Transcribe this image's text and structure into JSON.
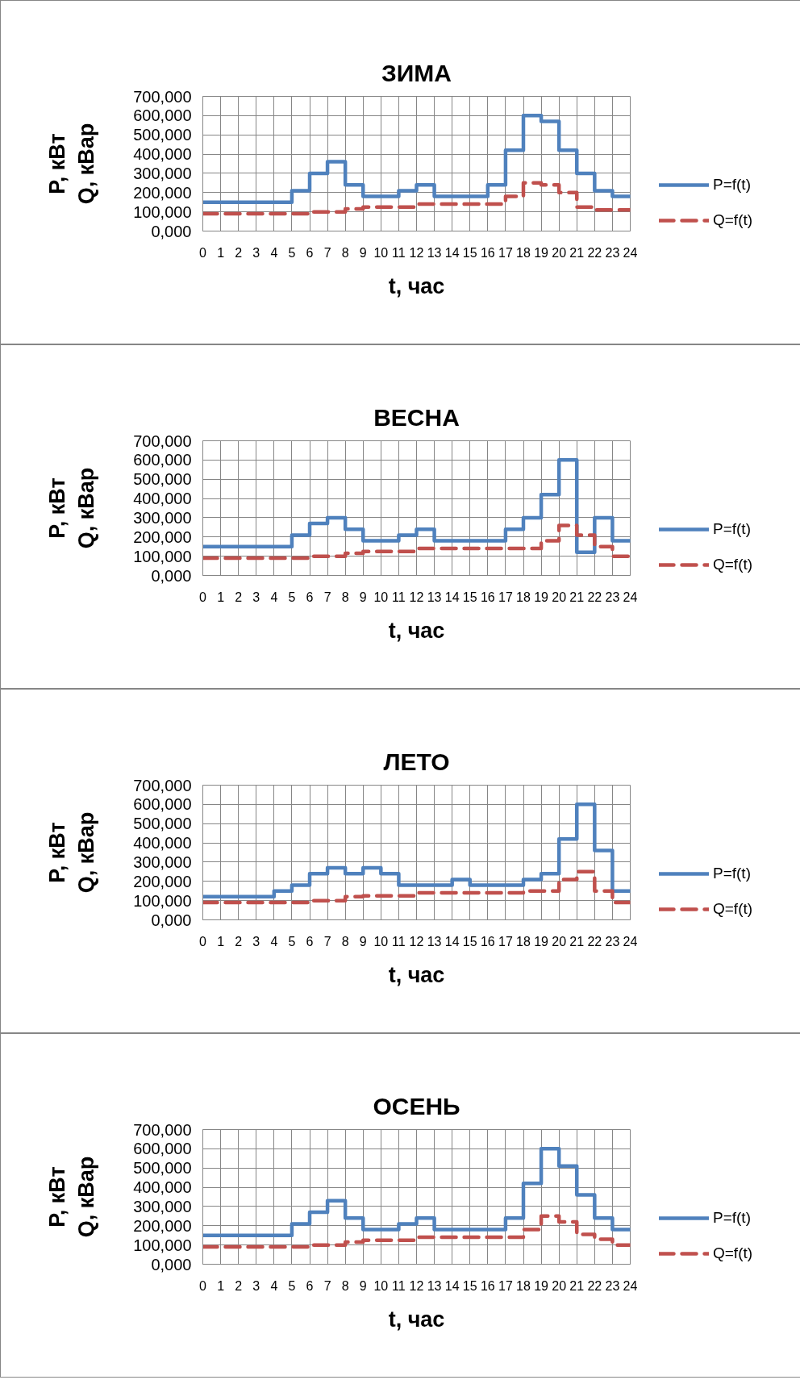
{
  "chart_data": [
    {
      "type": "step",
      "title": "ЗИМА",
      "xlabel": "t, час",
      "ylabel": "P, кВт\nQ, кВар",
      "x": [
        0,
        1,
        2,
        3,
        4,
        5,
        6,
        7,
        8,
        9,
        10,
        11,
        12,
        13,
        14,
        15,
        16,
        17,
        18,
        19,
        20,
        21,
        22,
        23,
        24
      ],
      "series": [
        {
          "name": "P=f(t)",
          "color": "#4f81bd",
          "line_style": "solid",
          "values": [
            150,
            150,
            150,
            150,
            150,
            210,
            300,
            360,
            240,
            180,
            180,
            210,
            240,
            180,
            180,
            180,
            240,
            420,
            600,
            570,
            420,
            300,
            210,
            180,
            180
          ]
        },
        {
          "name": "Q=f(t)",
          "color": "#c0504d",
          "line_style": "dashed",
          "values": [
            90,
            90,
            90,
            90,
            90,
            90,
            100,
            100,
            115,
            125,
            125,
            125,
            140,
            140,
            140,
            140,
            140,
            180,
            250,
            240,
            200,
            125,
            110,
            110,
            110
          ]
        }
      ],
      "xlim": [
        0,
        24
      ],
      "xticks": [
        0,
        1,
        2,
        3,
        4,
        5,
        6,
        7,
        8,
        9,
        10,
        11,
        12,
        13,
        14,
        15,
        16,
        17,
        18,
        19,
        20,
        21,
        22,
        23,
        24
      ],
      "ylim": [
        0,
        700
      ],
      "yticks": [
        {
          "value": 0,
          "label": "0,000"
        },
        {
          "value": 100,
          "label": "100,000"
        },
        {
          "value": 200,
          "label": "200,000"
        },
        {
          "value": 300,
          "label": "300,000"
        },
        {
          "value": 400,
          "label": "400,000"
        },
        {
          "value": 500,
          "label": "500,000"
        },
        {
          "value": 600,
          "label": "600,000"
        },
        {
          "value": 700,
          "label": "700,000"
        }
      ],
      "grid": true,
      "legend": "right"
    },
    {
      "type": "step",
      "title": "ВЕСНА",
      "xlabel": "t, час",
      "ylabel": "P, кВт\nQ, кВар",
      "x": [
        0,
        1,
        2,
        3,
        4,
        5,
        6,
        7,
        8,
        9,
        10,
        11,
        12,
        13,
        14,
        15,
        16,
        17,
        18,
        19,
        20,
        21,
        22,
        23,
        24
      ],
      "series": [
        {
          "name": "P=f(t)",
          "color": "#4f81bd",
          "line_style": "solid",
          "values": [
            150,
            150,
            150,
            150,
            150,
            210,
            270,
            300,
            240,
            180,
            180,
            210,
            240,
            180,
            180,
            180,
            180,
            240,
            300,
            420,
            600,
            120,
            300,
            180,
            180
          ]
        },
        {
          "name": "Q=f(t)",
          "color": "#c0504d",
          "line_style": "dashed",
          "values": [
            90,
            90,
            90,
            90,
            90,
            90,
            100,
            100,
            115,
            125,
            125,
            125,
            140,
            140,
            140,
            140,
            140,
            140,
            140,
            180,
            260,
            210,
            150,
            100,
            100
          ]
        }
      ],
      "xlim": [
        0,
        24
      ],
      "xticks": [
        0,
        1,
        2,
        3,
        4,
        5,
        6,
        7,
        8,
        9,
        10,
        11,
        12,
        13,
        14,
        15,
        16,
        17,
        18,
        19,
        20,
        21,
        22,
        23,
        24
      ],
      "ylim": [
        0,
        700
      ],
      "yticks": [
        {
          "value": 0,
          "label": "0,000"
        },
        {
          "value": 100,
          "label": "100,000"
        },
        {
          "value": 200,
          "label": "200,000"
        },
        {
          "value": 300,
          "label": "300,000"
        },
        {
          "value": 400,
          "label": "400,000"
        },
        {
          "value": 500,
          "label": "500,000"
        },
        {
          "value": 600,
          "label": "600,000"
        },
        {
          "value": 700,
          "label": "700,000"
        }
      ],
      "grid": true,
      "legend": "right"
    },
    {
      "type": "step",
      "title": "ЛЕТО",
      "xlabel": "t, час",
      "ylabel": "P, кВт\nQ, кВар",
      "x": [
        0,
        1,
        2,
        3,
        4,
        5,
        6,
        7,
        8,
        9,
        10,
        11,
        12,
        13,
        14,
        15,
        16,
        17,
        18,
        19,
        20,
        21,
        22,
        23,
        24
      ],
      "series": [
        {
          "name": "P=f(t)",
          "color": "#4f81bd",
          "line_style": "solid",
          "values": [
            120,
            120,
            120,
            120,
            150,
            180,
            240,
            270,
            240,
            270,
            240,
            180,
            180,
            180,
            210,
            180,
            180,
            180,
            210,
            240,
            420,
            600,
            360,
            150,
            150
          ]
        },
        {
          "name": "Q=f(t)",
          "color": "#c0504d",
          "line_style": "dashed",
          "values": [
            90,
            90,
            90,
            90,
            90,
            90,
            100,
            100,
            120,
            125,
            125,
            125,
            140,
            140,
            140,
            140,
            140,
            140,
            150,
            150,
            210,
            250,
            150,
            90,
            90
          ]
        }
      ],
      "xlim": [
        0,
        24
      ],
      "xticks": [
        0,
        1,
        2,
        3,
        4,
        5,
        6,
        7,
        8,
        9,
        10,
        11,
        12,
        13,
        14,
        15,
        16,
        17,
        18,
        19,
        20,
        21,
        22,
        23,
        24
      ],
      "ylim": [
        0,
        700
      ],
      "yticks": [
        {
          "value": 0,
          "label": "0,000"
        },
        {
          "value": 100,
          "label": "100,000"
        },
        {
          "value": 200,
          "label": "200,000"
        },
        {
          "value": 300,
          "label": "300,000"
        },
        {
          "value": 400,
          "label": "400,000"
        },
        {
          "value": 500,
          "label": "500,000"
        },
        {
          "value": 600,
          "label": "600,000"
        },
        {
          "value": 700,
          "label": "700,000"
        }
      ],
      "grid": true,
      "legend": "right"
    },
    {
      "type": "step",
      "title": "ОСЕНЬ",
      "xlabel": "t, час",
      "ylabel": "P, кВт\nQ, кВар",
      "x": [
        0,
        1,
        2,
        3,
        4,
        5,
        6,
        7,
        8,
        9,
        10,
        11,
        12,
        13,
        14,
        15,
        16,
        17,
        18,
        19,
        20,
        21,
        22,
        23,
        24
      ],
      "series": [
        {
          "name": "P=f(t)",
          "color": "#4f81bd",
          "line_style": "solid",
          "values": [
            150,
            150,
            150,
            150,
            150,
            210,
            270,
            330,
            240,
            180,
            180,
            210,
            240,
            180,
            180,
            180,
            180,
            240,
            420,
            600,
            510,
            360,
            240,
            180,
            180
          ]
        },
        {
          "name": "Q=f(t)",
          "color": "#c0504d",
          "line_style": "dashed",
          "values": [
            90,
            90,
            90,
            90,
            90,
            90,
            100,
            100,
            115,
            125,
            125,
            125,
            140,
            140,
            140,
            140,
            140,
            140,
            180,
            250,
            220,
            155,
            130,
            100,
            100
          ]
        }
      ],
      "xlim": [
        0,
        24
      ],
      "xticks": [
        0,
        1,
        2,
        3,
        4,
        5,
        6,
        7,
        8,
        9,
        10,
        11,
        12,
        13,
        14,
        15,
        16,
        17,
        18,
        19,
        20,
        21,
        22,
        23,
        24
      ],
      "ylim": [
        0,
        700
      ],
      "yticks": [
        {
          "value": 0,
          "label": "0,000"
        },
        {
          "value": 100,
          "label": "100,000"
        },
        {
          "value": 200,
          "label": "200,000"
        },
        {
          "value": 300,
          "label": "300,000"
        },
        {
          "value": 400,
          "label": "400,000"
        },
        {
          "value": 500,
          "label": "500,000"
        },
        {
          "value": 600,
          "label": "600,000"
        },
        {
          "value": 700,
          "label": "700,000"
        }
      ],
      "grid": true,
      "legend": "right"
    }
  ]
}
